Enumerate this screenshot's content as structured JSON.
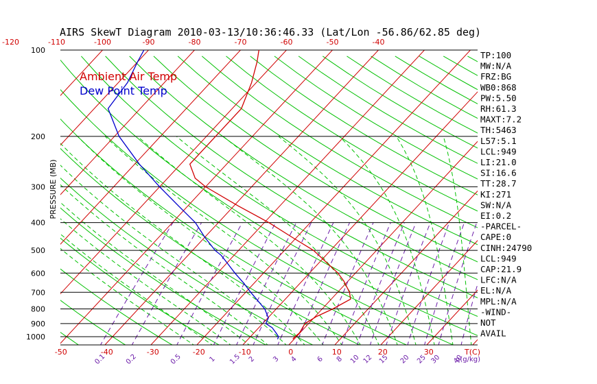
{
  "title": "AIRS SkewT Diagram 2010-03-13/10:36:46.33 (Lat/Lon -56.86/62.85 deg)",
  "colors": {
    "ambient": "#d00000",
    "dewpoint": "#0000cc",
    "dry_adiabat": "#00c000",
    "moist_adiabat": "#00c000",
    "isotherm": "#d00000",
    "mixing_ratio": "#6a1aa8",
    "isobar": "#000000"
  },
  "chart_data": {
    "type": "line",
    "title": "AIRS SkewT Diagram 2010-03-13/10:36:46.33 (Lat/Lon -56.86/62.85 deg)",
    "ylabel": "PRESSURE (MB)",
    "xlabel": "T(C)",
    "mixing_unit": "q(g/kg)",
    "y_log_scale": true,
    "ylim": [
      1050,
      100
    ],
    "pressure_levels": [
      100,
      200,
      300,
      400,
      500,
      600,
      700,
      800,
      900,
      1000
    ],
    "pressure_labels": [
      "100",
      "200",
      "300",
      "400",
      "500",
      "600",
      "700",
      "800",
      "900",
      "1000"
    ],
    "bottom_temps": [
      -50,
      -40,
      -30,
      -20,
      -10,
      0,
      10,
      20,
      30
    ],
    "bottom_temp_labels": [
      "-50",
      "-40",
      "-30",
      "-20",
      "-10",
      "0",
      "10",
      "20",
      "30"
    ],
    "top_temps": [
      -120,
      -110,
      -100,
      -90,
      -80,
      -70,
      -60,
      -50,
      -40
    ],
    "top_temp_labels": [
      "-120",
      "-110",
      "-100",
      "-90",
      "-80",
      "-70",
      "-60",
      "-50",
      "-40"
    ],
    "mixing_ratios": [
      0.1,
      0.2,
      0.5,
      1,
      1.5,
      2,
      3,
      4,
      6,
      8,
      10,
      12,
      15,
      20,
      25,
      30,
      40
    ],
    "mixing_labels": [
      "0.1",
      "0.2",
      "0.5",
      "1",
      "1.5",
      "2",
      "3",
      "4",
      "6",
      "8",
      "10",
      "12",
      "15",
      "20",
      "25",
      "30",
      "40"
    ],
    "series": [
      {
        "name": "Ambient Air Temp",
        "pressure": [
          1020,
          1000,
          970,
          900,
          850,
          800,
          740,
          700,
          640,
          600,
          540,
          500,
          450,
          400,
          350,
          300,
          280,
          250,
          200,
          160,
          130,
          110,
          100
        ],
        "temperature": [
          -0.3,
          -0.3,
          -0.1,
          -0.8,
          0.3,
          2.3,
          4.2,
          2.6,
          -0.9,
          -3.8,
          -9.5,
          -13.7,
          -21,
          -29,
          -39,
          -50,
          -54,
          -58,
          -58,
          -58,
          -61,
          -64,
          -66
        ]
      },
      {
        "name": "Dew Point Temp",
        "pressure": [
          1020,
          1000,
          970,
          930,
          900,
          860,
          800,
          700,
          650,
          600,
          550,
          520,
          500,
          450,
          400,
          350,
          300,
          250,
          200,
          160,
          130,
          110,
          100
        ],
        "temperature": [
          -3.6,
          -3.9,
          -5.2,
          -7.1,
          -9.3,
          -9.9,
          -12.5,
          -18.9,
          -22.3,
          -26.2,
          -30.2,
          -32.8,
          -35.1,
          -40,
          -45,
          -52,
          -60,
          -69,
          -79,
          -87,
          -88,
          -90,
          -91
        ]
      }
    ]
  },
  "indices": [
    "TP:100",
    "MW:N/A",
    "FRZ:BG",
    "WB0:868",
    "PW:5.50",
    "RH:61.3",
    "MAXT:7.2",
    "TH:5463",
    "L57:5.1",
    "LCL:949",
    "LI:21.0",
    "SI:16.6",
    "TT:28.7",
    "KI:271",
    "SW:N/A",
    "EI:0.2",
    "-PARCEL-",
    "CAPE:0",
    "CINH:24790",
    "LCL:949",
    "CAP:21.9",
    "LFC:N/A",
    "EL:N/A",
    "MPL:N/A",
    "-WIND-",
    "NOT",
    "AVAIL"
  ]
}
